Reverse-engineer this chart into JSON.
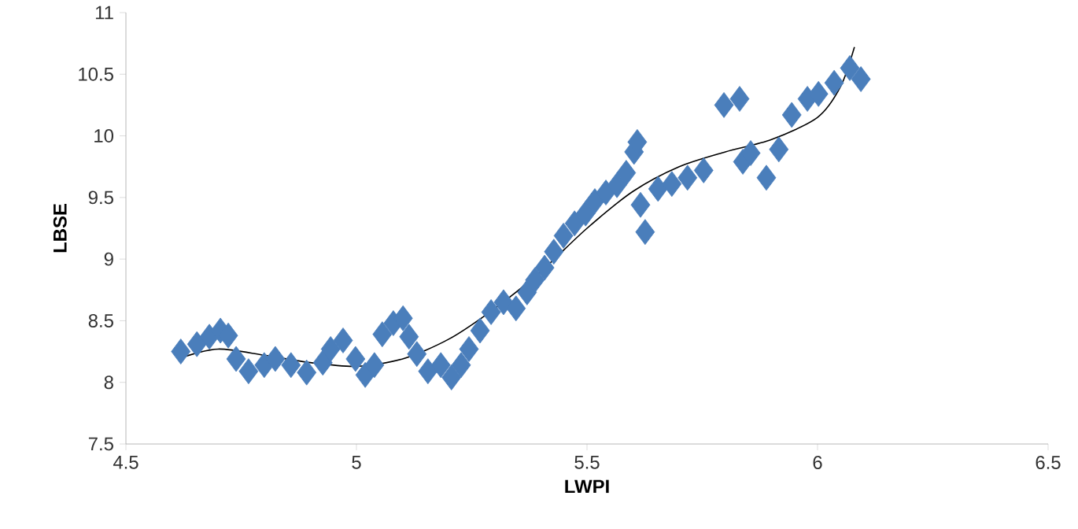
{
  "chart_data": {
    "type": "scatter",
    "xlabel": "LWPI",
    "ylabel": "LBSE",
    "xlim": [
      4.5,
      6.5
    ],
    "xticks": [
      4.5,
      5,
      5.5,
      6,
      6.5
    ],
    "ylim": [
      7.5,
      11
    ],
    "yticks": [
      7.5,
      8,
      8.5,
      9,
      9.5,
      10,
      10.5,
      11
    ],
    "series": [
      {
        "marker": "diamond",
        "color": "#4a7ebb",
        "x": [
          4.619,
          4.654,
          4.681,
          4.705,
          4.722,
          4.739,
          4.766,
          4.8,
          4.824,
          4.858,
          4.892,
          4.927,
          4.944,
          4.971,
          4.998,
          5.019,
          5.039,
          5.056,
          5.08,
          5.101,
          5.114,
          5.131,
          5.155,
          5.183,
          5.206,
          5.227,
          5.244,
          5.268,
          5.292,
          5.319,
          5.346,
          5.37,
          5.387,
          5.408,
          5.428,
          5.449,
          5.473,
          5.497,
          5.517,
          5.541,
          5.565,
          5.585,
          5.602,
          5.609,
          5.616,
          5.626,
          5.654,
          5.684,
          5.718,
          5.753,
          5.797,
          5.831,
          5.838,
          5.855,
          5.889,
          5.916,
          5.944,
          5.978,
          6.002,
          6.036,
          6.07,
          6.094
        ],
        "values": [
          8.25,
          8.31,
          8.37,
          8.42,
          8.38,
          8.19,
          8.09,
          8.14,
          8.19,
          8.14,
          8.08,
          8.16,
          8.27,
          8.34,
          8.19,
          8.06,
          8.14,
          8.39,
          8.48,
          8.52,
          8.37,
          8.23,
          8.09,
          8.14,
          8.04,
          8.14,
          8.27,
          8.42,
          8.57,
          8.65,
          8.6,
          8.73,
          8.83,
          8.93,
          9.06,
          9.19,
          9.29,
          9.37,
          9.47,
          9.54,
          9.6,
          9.7,
          9.87,
          9.95,
          9.44,
          9.22,
          9.57,
          9.61,
          9.66,
          9.72,
          10.25,
          10.3,
          9.79,
          9.86,
          9.66,
          9.89,
          10.17,
          10.3,
          10.34,
          10.43,
          10.55,
          10.46
        ]
      },
      {
        "type": "line",
        "marker": "none",
        "color": "#000000",
        "x": [
          4.62,
          4.7,
          4.8,
          4.9,
          5.0,
          5.1,
          5.2,
          5.3,
          5.4,
          5.5,
          5.6,
          5.7,
          5.8,
          5.9,
          6.0,
          6.05,
          6.08
        ],
        "values": [
          8.2,
          8.27,
          8.22,
          8.16,
          8.13,
          8.19,
          8.35,
          8.6,
          8.9,
          9.25,
          9.55,
          9.75,
          9.87,
          9.97,
          10.15,
          10.4,
          10.72
        ]
      }
    ]
  }
}
